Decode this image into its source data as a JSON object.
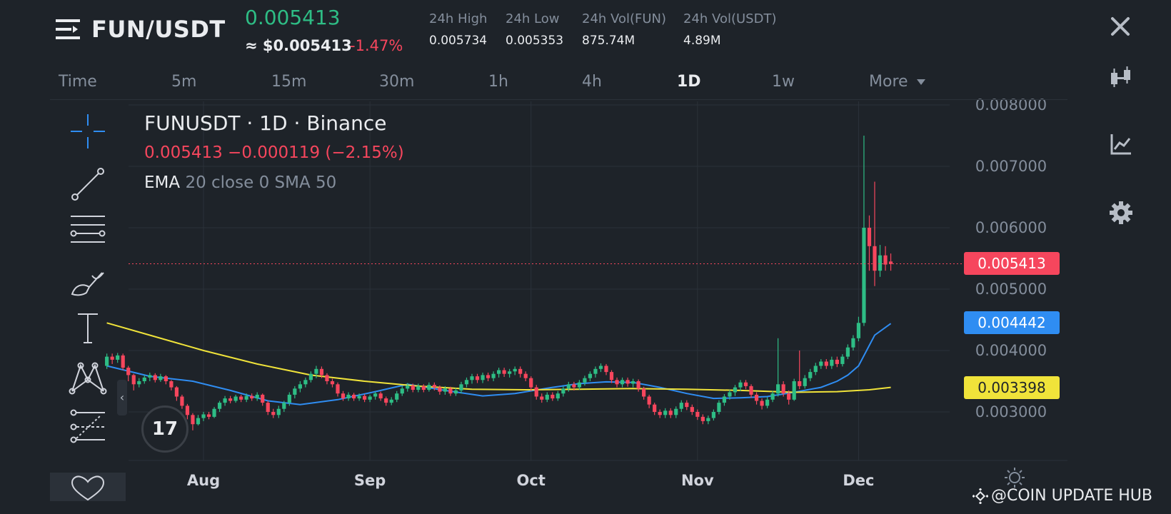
{
  "header": {
    "pair": "FUN/USDT",
    "last_price": "0.005413",
    "usd_price": "≈ $0.005413",
    "change_pct": "-1.47%",
    "stats": [
      {
        "label": "24h High",
        "value": "0.005734"
      },
      {
        "label": "24h Low",
        "value": "0.005353"
      },
      {
        "label": "24h Vol(FUN)",
        "value": "875.74M"
      },
      {
        "label": "24h Vol(USDT)",
        "value": "4.89M"
      }
    ]
  },
  "intervals": [
    {
      "label": "Time"
    },
    {
      "label": "5m"
    },
    {
      "label": "15m"
    },
    {
      "label": "30m"
    },
    {
      "label": "1h"
    },
    {
      "label": "4h"
    },
    {
      "label": "1D"
    },
    {
      "label": "1w"
    },
    {
      "label": "More"
    }
  ],
  "active_interval": "1D",
  "legend": {
    "symbol": "FUNUSDT · 1D · Binance",
    "ohlc": "0.005413  −0.000119 (−2.15%)",
    "indicator_name": "EMA",
    "indicator_params": "20 close 0 SMA 50"
  },
  "price_tags": {
    "last": "0.005413",
    "ema": "0.004442",
    "sma": "0.003398"
  },
  "tv_logo": "17",
  "watermark": "@COIN UPDATE HUB",
  "colors": {
    "up": "#2ebd85",
    "down": "#f6465d",
    "ema": "#2f8df2",
    "sma": "#f0e33a",
    "background": "#1e2329"
  },
  "icons": {
    "menu": "menu-icon",
    "close": "close-icon",
    "side": [
      "candle-type-icon",
      "indicators-icon",
      "settings-icon"
    ],
    "tools": [
      "crosshair-icon",
      "trend-line-icon",
      "horizontal-lines-icon",
      "brush-icon",
      "text-icon",
      "pattern-icon",
      "fib-icon",
      "favorites-icon"
    ]
  },
  "chart_data": {
    "type": "candlestick",
    "x_ticks": [
      "Aug",
      "Sep",
      "Oct",
      "Nov",
      "Dec"
    ],
    "y_ticks": [
      "0.008000",
      "0.007000",
      "0.006000",
      "0.005000",
      "0.004000",
      "0.003000"
    ],
    "ylim": [
      0.002,
      0.008
    ],
    "x_range_days": [
      -20,
      145
    ],
    "month_start_days": [
      0,
      31,
      61,
      92,
      122
    ],
    "grid": true,
    "last_price": 0.005413,
    "ema_last": 0.004442,
    "sma_last": 0.003398,
    "series": [
      {
        "name": "EMA",
        "color": "#2f8df2",
        "points": [
          [
            -18,
            0.00375
          ],
          [
            -10,
            0.00358
          ],
          [
            -2,
            0.0035
          ],
          [
            5,
            0.00335
          ],
          [
            12,
            0.00318
          ],
          [
            18,
            0.00312
          ],
          [
            25,
            0.0032
          ],
          [
            32,
            0.00333
          ],
          [
            38,
            0.00345
          ],
          [
            45,
            0.00335
          ],
          [
            52,
            0.00326
          ],
          [
            58,
            0.0033
          ],
          [
            65,
            0.0034
          ],
          [
            70,
            0.00346
          ],
          [
            75,
            0.00349
          ],
          [
            80,
            0.00348
          ],
          [
            85,
            0.0034
          ],
          [
            90,
            0.0033
          ],
          [
            95,
            0.00322
          ],
          [
            100,
            0.00323
          ],
          [
            105,
            0.00325
          ],
          [
            110,
            0.00332
          ],
          [
            115,
            0.0034
          ],
          [
            118,
            0.0035
          ],
          [
            120,
            0.0036
          ],
          [
            122,
            0.00375
          ],
          [
            125,
            0.00425
          ],
          [
            128,
            0.00444
          ]
        ]
      },
      {
        "name": "SMA",
        "color": "#f0e33a",
        "points": [
          [
            -18,
            0.00445
          ],
          [
            -10,
            0.00425
          ],
          [
            0,
            0.004
          ],
          [
            10,
            0.00378
          ],
          [
            20,
            0.0036
          ],
          [
            30,
            0.0035
          ],
          [
            40,
            0.00342
          ],
          [
            50,
            0.00337
          ],
          [
            60,
            0.00336
          ],
          [
            70,
            0.00337
          ],
          [
            80,
            0.00338
          ],
          [
            90,
            0.00337
          ],
          [
            100,
            0.00335
          ],
          [
            110,
            0.00332
          ],
          [
            118,
            0.00333
          ],
          [
            124,
            0.00336
          ],
          [
            128,
            0.0034
          ]
        ]
      }
    ],
    "candles": [
      [
        -18,
        0.00375,
        0.0039,
        0.00395,
        0.0037
      ],
      [
        -17,
        0.0039,
        0.00385,
        0.00395,
        0.00378
      ],
      [
        -16,
        0.00385,
        0.00392,
        0.00396,
        0.0038
      ],
      [
        -15,
        0.00392,
        0.00372,
        0.00395,
        0.00368
      ],
      [
        -14,
        0.00372,
        0.0036,
        0.00375,
        0.0035
      ],
      [
        -13,
        0.0036,
        0.00345,
        0.00362,
        0.00335
      ],
      [
        -12,
        0.00345,
        0.0035,
        0.00355,
        0.0034
      ],
      [
        -11,
        0.0035,
        0.00356,
        0.0036,
        0.00346
      ],
      [
        -10,
        0.00356,
        0.0036,
        0.00364,
        0.0035
      ],
      [
        -9,
        0.0036,
        0.00352,
        0.00363,
        0.00348
      ],
      [
        -8,
        0.00352,
        0.00358,
        0.00362,
        0.00349
      ],
      [
        -7,
        0.00358,
        0.0035,
        0.0036,
        0.00345
      ],
      [
        -6,
        0.0035,
        0.0034,
        0.00352,
        0.00335
      ],
      [
        -5,
        0.0034,
        0.00325,
        0.00342,
        0.00318
      ],
      [
        -4,
        0.00325,
        0.0031,
        0.00328,
        0.00305
      ],
      [
        -3,
        0.0031,
        0.00295,
        0.00313,
        0.00288
      ],
      [
        -2,
        0.00295,
        0.0028,
        0.00298,
        0.0027
      ],
      [
        -1,
        0.0028,
        0.0029,
        0.00295,
        0.00278
      ],
      [
        0,
        0.0029,
        0.00296,
        0.003,
        0.00285
      ],
      [
        1,
        0.00296,
        0.00292,
        0.003,
        0.00288
      ],
      [
        2,
        0.00292,
        0.00305,
        0.00308,
        0.0029
      ],
      [
        3,
        0.00305,
        0.00315,
        0.00318,
        0.003
      ],
      [
        4,
        0.00315,
        0.00322,
        0.00326,
        0.0031
      ],
      [
        5,
        0.00322,
        0.00318,
        0.00326,
        0.00314
      ],
      [
        6,
        0.00318,
        0.00325,
        0.00328,
        0.00315
      ],
      [
        7,
        0.00325,
        0.0032,
        0.00328,
        0.00316
      ],
      [
        8,
        0.0032,
        0.00326,
        0.0033,
        0.00316
      ],
      [
        9,
        0.00326,
        0.00322,
        0.0033,
        0.00318
      ],
      [
        10,
        0.00322,
        0.00328,
        0.00332,
        0.00318
      ],
      [
        11,
        0.00328,
        0.00315,
        0.0033,
        0.0031
      ],
      [
        12,
        0.00315,
        0.003,
        0.00318,
        0.00295
      ],
      [
        13,
        0.003,
        0.00295,
        0.00305,
        0.0029
      ],
      [
        14,
        0.00295,
        0.00305,
        0.0031,
        0.0029
      ],
      [
        15,
        0.00305,
        0.00315,
        0.00318,
        0.003
      ],
      [
        16,
        0.00315,
        0.00328,
        0.00332,
        0.0031
      ],
      [
        17,
        0.00328,
        0.00338,
        0.00342,
        0.00322
      ],
      [
        18,
        0.00338,
        0.00345,
        0.0035,
        0.00332
      ],
      [
        19,
        0.00345,
        0.00352,
        0.00356,
        0.0034
      ],
      [
        20,
        0.00352,
        0.00362,
        0.00366,
        0.00348
      ],
      [
        21,
        0.00362,
        0.0037,
        0.00375,
        0.00355
      ],
      [
        22,
        0.0037,
        0.0036,
        0.00374,
        0.00355
      ],
      [
        23,
        0.0036,
        0.0035,
        0.00363,
        0.00345
      ],
      [
        24,
        0.0035,
        0.00345,
        0.00354,
        0.0034
      ],
      [
        25,
        0.00345,
        0.0033,
        0.00348,
        0.00325
      ],
      [
        26,
        0.0033,
        0.00322,
        0.00334,
        0.00318
      ],
      [
        27,
        0.00322,
        0.00328,
        0.00332,
        0.00318
      ],
      [
        28,
        0.00328,
        0.00322,
        0.00331,
        0.00318
      ],
      [
        29,
        0.00322,
        0.00326,
        0.0033,
        0.00318
      ],
      [
        30,
        0.00326,
        0.0032,
        0.00329,
        0.00316
      ],
      [
        31,
        0.0032,
        0.00325,
        0.00328,
        0.00316
      ],
      [
        32,
        0.00325,
        0.0033,
        0.00333,
        0.0032
      ],
      [
        33,
        0.0033,
        0.00322,
        0.00333,
        0.00318
      ],
      [
        34,
        0.00322,
        0.00315,
        0.00325,
        0.0031
      ],
      [
        35,
        0.00315,
        0.0032,
        0.00324,
        0.00311
      ],
      [
        36,
        0.0032,
        0.0033,
        0.00334,
        0.00316
      ],
      [
        37,
        0.0033,
        0.00338,
        0.00342,
        0.00326
      ],
      [
        38,
        0.00338,
        0.00343,
        0.00347,
        0.00333
      ],
      [
        39,
        0.00343,
        0.00336,
        0.00346,
        0.00332
      ],
      [
        40,
        0.00336,
        0.00342,
        0.00346,
        0.00332
      ],
      [
        41,
        0.00342,
        0.00336,
        0.00345,
        0.00332
      ],
      [
        42,
        0.00336,
        0.00344,
        0.00348,
        0.00333
      ],
      [
        43,
        0.00344,
        0.0034,
        0.00348,
        0.00335
      ],
      [
        44,
        0.0034,
        0.00333,
        0.00343,
        0.00328
      ],
      [
        45,
        0.00333,
        0.00338,
        0.00342,
        0.00328
      ],
      [
        46,
        0.00338,
        0.0033,
        0.00341,
        0.00326
      ],
      [
        47,
        0.0033,
        0.00335,
        0.00339,
        0.00326
      ],
      [
        48,
        0.00335,
        0.00345,
        0.00349,
        0.0033
      ],
      [
        49,
        0.00345,
        0.00352,
        0.00356,
        0.0034
      ],
      [
        50,
        0.00352,
        0.00358,
        0.00362,
        0.00346
      ],
      [
        51,
        0.00358,
        0.00352,
        0.00362,
        0.00347
      ],
      [
        52,
        0.00352,
        0.0036,
        0.00364,
        0.00347
      ],
      [
        53,
        0.0036,
        0.00355,
        0.00364,
        0.0035
      ],
      [
        54,
        0.00355,
        0.00362,
        0.00366,
        0.0035
      ],
      [
        55,
        0.00362,
        0.00368,
        0.00372,
        0.00356
      ],
      [
        56,
        0.00368,
        0.00362,
        0.00372,
        0.00357
      ],
      [
        57,
        0.00362,
        0.00366,
        0.0037,
        0.00356
      ],
      [
        58,
        0.00366,
        0.0037,
        0.00374,
        0.0036
      ],
      [
        59,
        0.0037,
        0.00362,
        0.00374,
        0.00356
      ],
      [
        60,
        0.00362,
        0.00355,
        0.00366,
        0.0035
      ],
      [
        61,
        0.00355,
        0.0034,
        0.00358,
        0.00334
      ],
      [
        62,
        0.0034,
        0.00325,
        0.00344,
        0.0032
      ],
      [
        63,
        0.00325,
        0.0032,
        0.0033,
        0.00315
      ],
      [
        64,
        0.0032,
        0.00328,
        0.00332,
        0.00316
      ],
      [
        65,
        0.00328,
        0.00322,
        0.00332,
        0.00318
      ],
      [
        66,
        0.00322,
        0.0033,
        0.00334,
        0.00318
      ],
      [
        67,
        0.0033,
        0.00338,
        0.00342,
        0.00325
      ],
      [
        68,
        0.00338,
        0.00345,
        0.00349,
        0.00333
      ],
      [
        69,
        0.00345,
        0.0034,
        0.00349,
        0.00335
      ],
      [
        70,
        0.0034,
        0.00348,
        0.00352,
        0.00336
      ],
      [
        71,
        0.00348,
        0.00355,
        0.00359,
        0.00343
      ],
      [
        72,
        0.00355,
        0.00362,
        0.00366,
        0.0035
      ],
      [
        73,
        0.00362,
        0.0037,
        0.00374,
        0.00356
      ],
      [
        74,
        0.0037,
        0.00375,
        0.00379,
        0.00365
      ],
      [
        75,
        0.00375,
        0.00365,
        0.00378,
        0.0036
      ],
      [
        76,
        0.00365,
        0.00352,
        0.00368,
        0.00347
      ],
      [
        77,
        0.00352,
        0.00345,
        0.00356,
        0.0034
      ],
      [
        78,
        0.00345,
        0.00352,
        0.00356,
        0.0034
      ],
      [
        79,
        0.00352,
        0.00346,
        0.00356,
        0.00341
      ],
      [
        80,
        0.00346,
        0.0035,
        0.00354,
        0.0034
      ],
      [
        81,
        0.0035,
        0.00338,
        0.00353,
        0.00333
      ],
      [
        82,
        0.00338,
        0.00325,
        0.00341,
        0.0032
      ],
      [
        83,
        0.00325,
        0.00312,
        0.00328,
        0.00306
      ],
      [
        84,
        0.00312,
        0.003,
        0.00315,
        0.00295
      ],
      [
        85,
        0.003,
        0.00295,
        0.00304,
        0.0029
      ],
      [
        86,
        0.00295,
        0.00302,
        0.00306,
        0.0029
      ],
      [
        87,
        0.00302,
        0.00295,
        0.00306,
        0.0029
      ],
      [
        88,
        0.00295,
        0.00305,
        0.00309,
        0.0029
      ],
      [
        89,
        0.00305,
        0.00315,
        0.00319,
        0.003
      ],
      [
        90,
        0.00315,
        0.00308,
        0.00319,
        0.00303
      ],
      [
        91,
        0.00308,
        0.003,
        0.00312,
        0.00295
      ],
      [
        92,
        0.003,
        0.00292,
        0.00304,
        0.00287
      ],
      [
        93,
        0.00292,
        0.00285,
        0.00296,
        0.0028
      ],
      [
        94,
        0.00285,
        0.0029,
        0.00294,
        0.0028
      ],
      [
        95,
        0.0029,
        0.003,
        0.00304,
        0.00286
      ],
      [
        96,
        0.003,
        0.00315,
        0.00319,
        0.00296
      ],
      [
        97,
        0.00315,
        0.00325,
        0.00329,
        0.0031
      ],
      [
        98,
        0.00325,
        0.00332,
        0.00336,
        0.0032
      ],
      [
        99,
        0.00332,
        0.0034,
        0.00344,
        0.00326
      ],
      [
        100,
        0.0034,
        0.00348,
        0.00352,
        0.00334
      ],
      [
        101,
        0.00348,
        0.00342,
        0.00352,
        0.00337
      ],
      [
        102,
        0.00342,
        0.00328,
        0.00345,
        0.00323
      ],
      [
        103,
        0.00328,
        0.00318,
        0.00332,
        0.00312
      ],
      [
        104,
        0.00318,
        0.0031,
        0.00322,
        0.00304
      ],
      [
        105,
        0.0031,
        0.0032,
        0.00324,
        0.00306
      ],
      [
        106,
        0.0032,
        0.0033,
        0.00334,
        0.00316
      ],
      [
        107,
        0.0033,
        0.00345,
        0.0042,
        0.00325
      ],
      [
        108,
        0.00345,
        0.0033,
        0.0035,
        0.00325
      ],
      [
        109,
        0.0033,
        0.0032,
        0.00335,
        0.00312
      ],
      [
        110,
        0.0032,
        0.0035,
        0.00354,
        0.00318
      ],
      [
        111,
        0.0035,
        0.00342,
        0.004,
        0.00337
      ],
      [
        112,
        0.00342,
        0.00355,
        0.0036,
        0.00338
      ],
      [
        113,
        0.00355,
        0.00365,
        0.0037,
        0.0035
      ],
      [
        114,
        0.00365,
        0.00375,
        0.0038,
        0.0036
      ],
      [
        115,
        0.00375,
        0.00382,
        0.00386,
        0.0037
      ],
      [
        116,
        0.00382,
        0.00375,
        0.00386,
        0.0037
      ],
      [
        117,
        0.00375,
        0.00385,
        0.0039,
        0.0037
      ],
      [
        118,
        0.00385,
        0.00378,
        0.0039,
        0.00373
      ],
      [
        119,
        0.00378,
        0.0039,
        0.00394,
        0.00374
      ],
      [
        120,
        0.0039,
        0.00405,
        0.0041,
        0.00386
      ],
      [
        121,
        0.00405,
        0.0042,
        0.00425,
        0.004
      ],
      [
        122,
        0.0042,
        0.00445,
        0.00455,
        0.00415
      ],
      [
        123,
        0.00445,
        0.006,
        0.0075,
        0.0044
      ],
      [
        124,
        0.006,
        0.0057,
        0.0062,
        0.0053
      ],
      [
        125,
        0.0057,
        0.0053,
        0.00675,
        0.00505
      ],
      [
        126,
        0.0053,
        0.00555,
        0.00572,
        0.0052
      ],
      [
        127,
        0.00555,
        0.0054,
        0.0057,
        0.0053
      ],
      [
        128,
        0.00545,
        0.00541,
        0.00558,
        0.0053
      ]
    ]
  }
}
